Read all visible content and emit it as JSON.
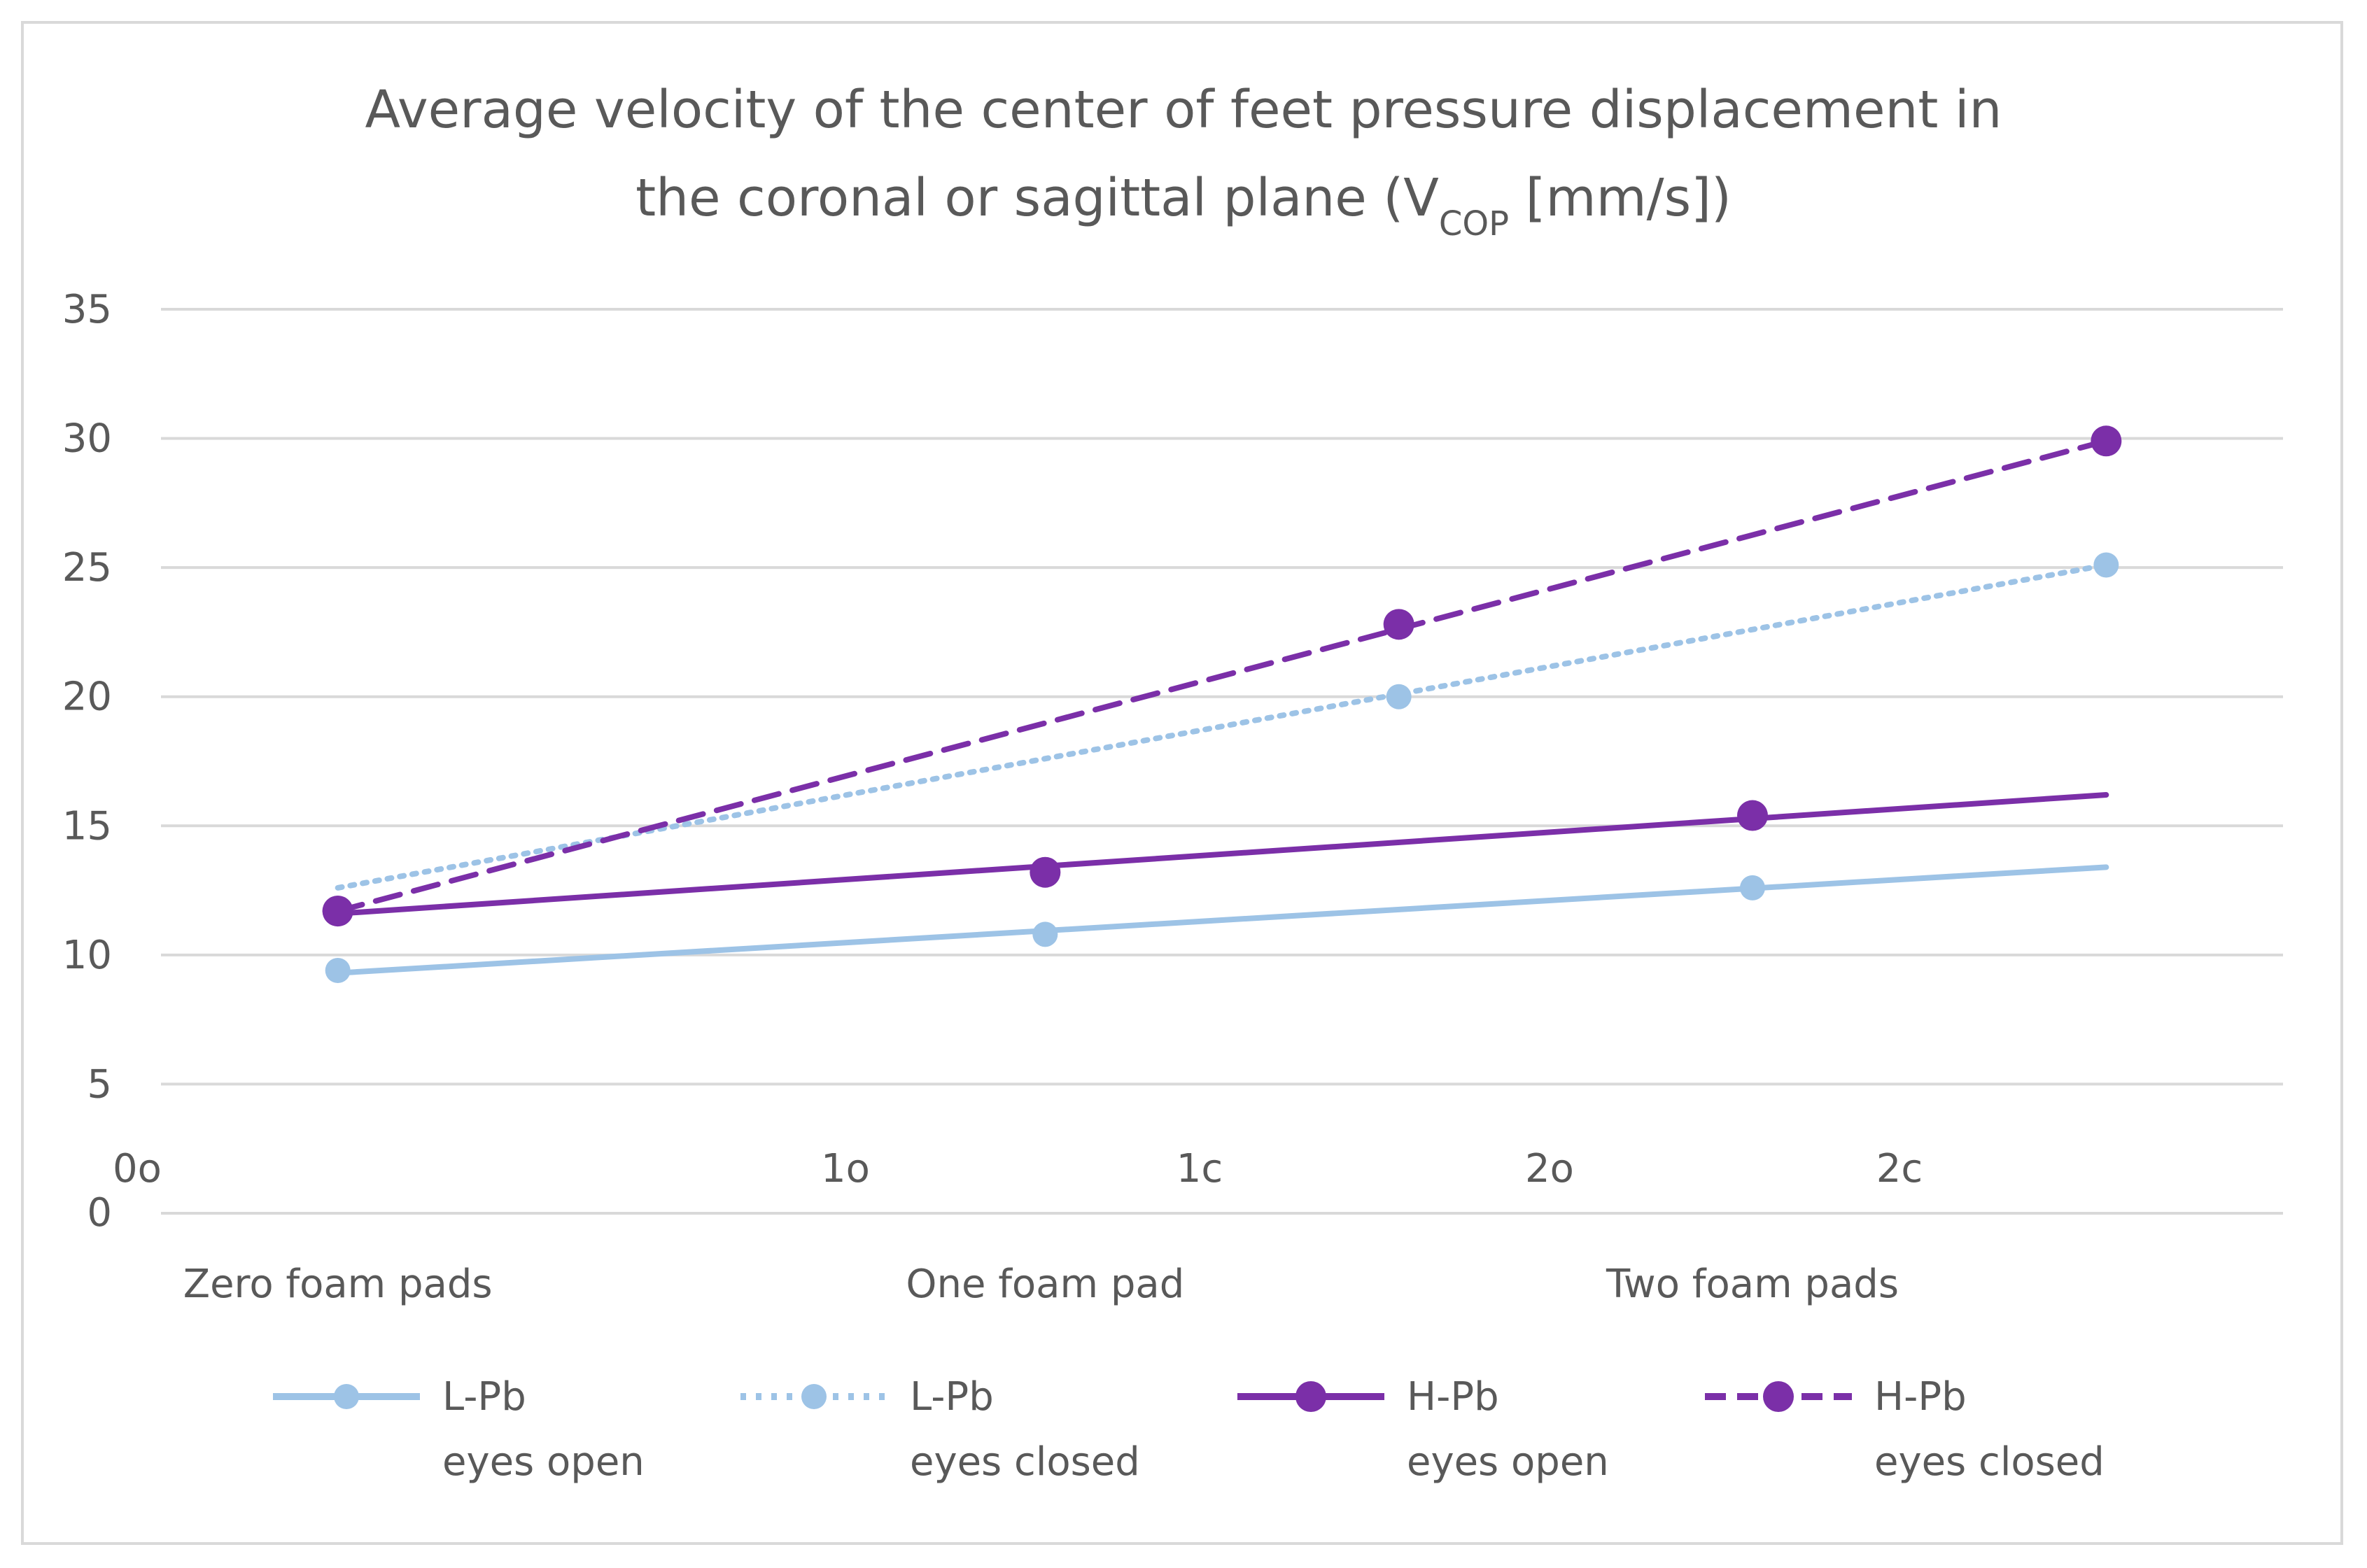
{
  "chart_data": {
    "type": "line",
    "title": {
      "line1": "Average velocity of the center of feet pressure displacement in",
      "line2_prefix": "the coronal or sagittal plane (V",
      "line2_subscript": "COP",
      "line2_suffix": " [mm/s])"
    },
    "ylim": [
      0,
      35
    ],
    "yticks": [
      "0",
      "5",
      "10",
      "15",
      "20",
      "25",
      "30",
      "35"
    ],
    "grid": true,
    "secondary_x_labels": [
      "0o",
      "1o",
      "1c",
      "2o",
      "2c"
    ],
    "categories": [
      "Zero foam pads",
      "One foam pad",
      "Two foam pads"
    ],
    "legend_position": "bottom",
    "series": [
      {
        "name_line1": "L-Pb",
        "name_line2": "eyes open",
        "style": "solid",
        "marker_size": "small",
        "color": "#9dc3e6",
        "points": [
          [
            0.5,
            9.4
          ],
          [
            2.5,
            10.8
          ],
          [
            4.5,
            12.6
          ]
        ],
        "trend": [
          [
            0.5,
            9.3
          ],
          [
            5.5,
            13.4
          ]
        ]
      },
      {
        "name_line1": "L-Pb",
        "name_line2": "eyes closed",
        "style": "dotted",
        "marker_size": "small",
        "color": "#9dc3e6",
        "points": [
          [
            3.5,
            20.0
          ],
          [
            5.5,
            25.1
          ]
        ],
        "trend": [
          [
            0.5,
            12.6
          ],
          [
            5.5,
            25.1
          ]
        ]
      },
      {
        "name_line1": "H-Pb",
        "name_line2": "eyes open",
        "style": "solid",
        "marker_size": "large",
        "color": "#7b2fa8",
        "points": [
          [
            0.5,
            11.7
          ],
          [
            2.5,
            13.2
          ],
          [
            4.5,
            15.4
          ]
        ],
        "trend": [
          [
            0.5,
            11.6
          ],
          [
            5.5,
            16.2
          ]
        ]
      },
      {
        "name_line1": "H-Pb",
        "name_line2": "eyes closed",
        "style": "dashed",
        "marker_size": "large",
        "color": "#7b2fa8",
        "points": [
          [
            0.5,
            11.7
          ],
          [
            3.5,
            22.8
          ],
          [
            5.5,
            29.9
          ]
        ],
        "trend": [
          [
            0.5,
            11.7
          ],
          [
            5.5,
            29.9
          ]
        ]
      }
    ]
  }
}
